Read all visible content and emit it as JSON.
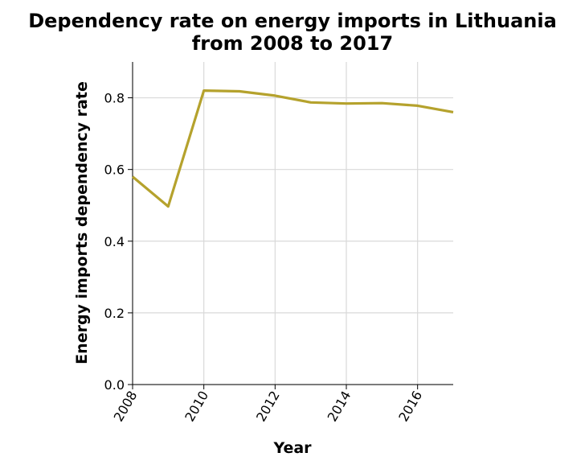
{
  "chart_data": {
    "type": "line",
    "title": [
      "Dependency rate on energy imports in Lithuania",
      "from 2008 to 2017"
    ],
    "xlabel": "Year",
    "ylabel": "Energy imports dependency rate",
    "xlim": [
      2008,
      2017
    ],
    "ylim": [
      0,
      0.9
    ],
    "x_ticks": [
      2008,
      2010,
      2012,
      2014,
      2016
    ],
    "x_tick_labels": [
      "2008",
      "2010",
      "2012",
      "2014",
      "2016"
    ],
    "y_ticks": [
      0.0,
      0.2,
      0.4,
      0.6,
      0.8
    ],
    "y_tick_labels": [
      "0.0",
      "0.2",
      "0.4",
      "0.6",
      "0.8"
    ],
    "grid": true,
    "series": [
      {
        "color": "#b5a22d",
        "x": [
          2008,
          2009,
          2010,
          2011,
          2012,
          2013,
          2014,
          2015,
          2016,
          2017
        ],
        "y": [
          0.58,
          0.497,
          0.82,
          0.818,
          0.806,
          0.787,
          0.784,
          0.785,
          0.778,
          0.76
        ]
      }
    ]
  }
}
